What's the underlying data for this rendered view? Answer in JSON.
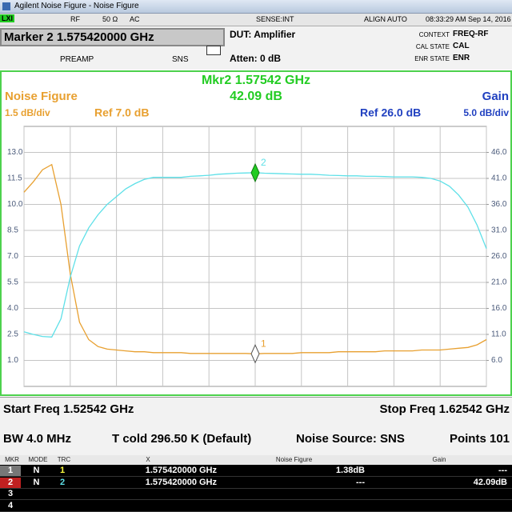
{
  "title_bar": "Agilent Noise Figure - Noise Figure",
  "status": {
    "lxi": "LXI",
    "items": [
      "RF",
      "50 Ω",
      "AC",
      "SENSE:INT",
      "ALIGN AUTO"
    ],
    "time": "08:33:29 AM Sep 14, 2016"
  },
  "marker_box": "Marker 2 1.575420000 GHz",
  "dut": "DUT: Amplifier",
  "atten": "Atten: 0 dB",
  "preamp": "PREAMP",
  "sns": "SNS",
  "context": [
    {
      "label": "CONTEXT",
      "value": "FREQ-RF"
    },
    {
      "label": "CAL STATE",
      "value": "CAL"
    },
    {
      "label": "ENR STATE",
      "value": "ENR"
    }
  ],
  "chart_data": {
    "type": "line",
    "title": "Mkr2  1.57542 GHz",
    "subtitle": "42.09 dB",
    "left_scale": "1.5 dB/div",
    "left_ref": "Ref 7.0 dB",
    "right_scale": "5.0 dB/div",
    "right_ref": "Ref 26.0 dB",
    "x": [
      1.52542,
      1.52742,
      1.52942,
      1.53142,
      1.53342,
      1.53542,
      1.53742,
      1.53942,
      1.54142,
      1.54342,
      1.54542,
      1.54742,
      1.54942,
      1.55142,
      1.55342,
      1.55542,
      1.55742,
      1.55942,
      1.56142,
      1.56342,
      1.56542,
      1.56742,
      1.56942,
      1.57142,
      1.57342,
      1.57542,
      1.57742,
      1.57942,
      1.58142,
      1.58342,
      1.58542,
      1.58742,
      1.58942,
      1.59142,
      1.59342,
      1.59542,
      1.59742,
      1.59942,
      1.60142,
      1.60342,
      1.60542,
      1.60742,
      1.60942,
      1.61142,
      1.61342,
      1.61542,
      1.61742,
      1.61942,
      1.62142,
      1.62342,
      1.62542
    ],
    "xlim": [
      1.52542,
      1.62542
    ],
    "xticks": [
      1.52542,
      1.53542,
      1.54542,
      1.55542,
      1.56542,
      1.57542,
      1.58542,
      1.59542,
      1.60542,
      1.61542,
      1.62542
    ],
    "series": [
      {
        "name": "Noise Figure",
        "color": "#e8a030",
        "values": [
          10.7,
          11.3,
          12.0,
          12.3,
          10.0,
          6.0,
          3.2,
          2.2,
          1.8,
          1.65,
          1.6,
          1.55,
          1.5,
          1.5,
          1.45,
          1.45,
          1.45,
          1.45,
          1.4,
          1.4,
          1.4,
          1.4,
          1.4,
          1.4,
          1.4,
          1.38,
          1.4,
          1.4,
          1.4,
          1.4,
          1.45,
          1.45,
          1.45,
          1.45,
          1.5,
          1.5,
          1.5,
          1.5,
          1.5,
          1.55,
          1.55,
          1.55,
          1.55,
          1.6,
          1.6,
          1.6,
          1.65,
          1.7,
          1.75,
          1.9,
          2.2
        ]
      },
      {
        "name": "Gain",
        "color": "#5ee0e8",
        "axis": "y2",
        "values": [
          11.5,
          11.0,
          10.6,
          10.5,
          14,
          22,
          28,
          31.5,
          34,
          36,
          37.5,
          39,
          40,
          40.8,
          41.2,
          41.2,
          41.2,
          41.2,
          41.4,
          41.5,
          41.6,
          41.8,
          41.9,
          42.0,
          42.05,
          42.09,
          42.0,
          41.95,
          41.9,
          41.85,
          41.8,
          41.8,
          41.7,
          41.6,
          41.55,
          41.5,
          41.5,
          41.4,
          41.4,
          41.35,
          41.3,
          41.3,
          41.3,
          41.2,
          41.0,
          40.5,
          39.5,
          37.8,
          35.5,
          32,
          27.5
        ]
      }
    ],
    "ylim": [
      -0.5,
      14.5
    ],
    "yticks": [
      {
        "value": 1,
        "label": "1.0"
      },
      {
        "value": 2.5,
        "label": "2.5"
      },
      {
        "value": 4,
        "label": "4.0"
      },
      {
        "value": 5.5,
        "label": "5.5"
      },
      {
        "value": 7,
        "label": "7.0"
      },
      {
        "value": 8.5,
        "label": "8.5"
      },
      {
        "value": 10,
        "label": "10.0"
      },
      {
        "value": 11.5,
        "label": "11.5"
      },
      {
        "value": 13,
        "label": "13.0"
      }
    ],
    "y2lim": [
      1,
      51
    ],
    "y2ticks": [
      {
        "value": 6,
        "label": "6.0"
      },
      {
        "value": 11,
        "label": "11.0"
      },
      {
        "value": 16,
        "label": "16.0"
      },
      {
        "value": 21,
        "label": "21.0"
      },
      {
        "value": 26,
        "label": "26.0"
      },
      {
        "value": 31,
        "label": "31.0"
      },
      {
        "value": 36,
        "label": "36.0"
      },
      {
        "value": 41,
        "label": "41.0"
      },
      {
        "value": 46,
        "label": "46.0"
      }
    ],
    "grid": true,
    "markers": [
      {
        "label": "1",
        "x": 1.57542,
        "value": 1.38,
        "series": 0
      },
      {
        "label": "2",
        "x": 1.57542,
        "value": 42.09,
        "series": 1
      }
    ]
  },
  "footer": {
    "start": "Start Freq 1.52542 GHz",
    "stop": "Stop Freq 1.62542 GHz",
    "bw": "BW 4.0 MHz",
    "tcold": "T cold 296.50 K (Default)",
    "source": "Noise Source: SNS",
    "points": "Points 101"
  },
  "table": {
    "header": [
      "MKR",
      "MODE",
      "TRC",
      "X",
      "Noise Figure",
      "Gain"
    ],
    "rows": [
      [
        "1",
        "N",
        "1",
        "1.575420000 GHz",
        "1.38dB",
        "---"
      ],
      [
        "2",
        "N",
        "2",
        "1.575420000 GHz",
        "---",
        "42.09dB"
      ],
      [
        "3"
      ],
      [
        "4"
      ]
    ]
  }
}
